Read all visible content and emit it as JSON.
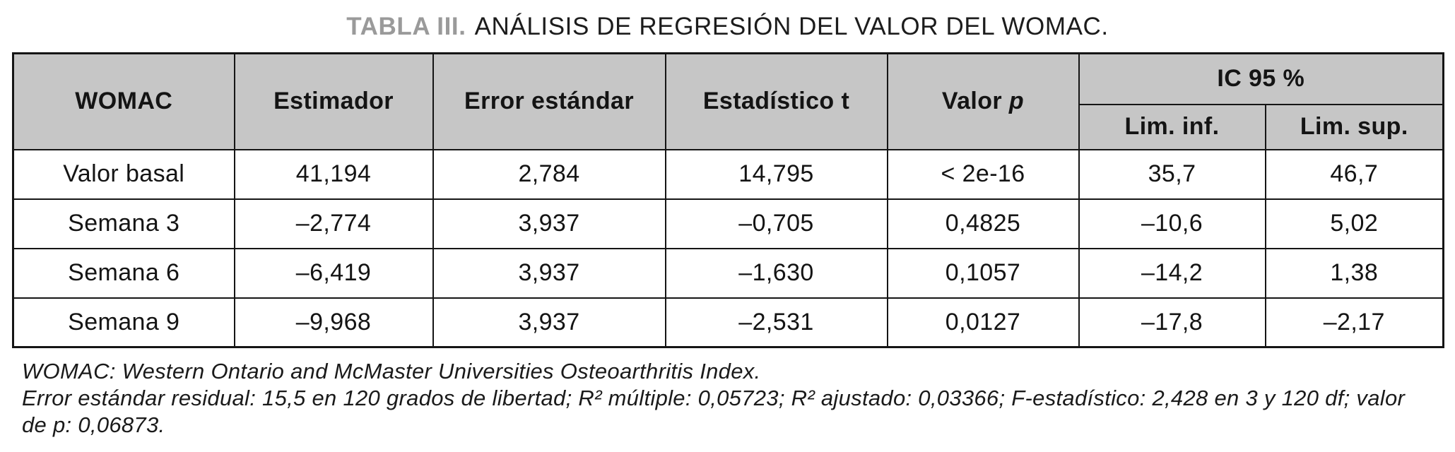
{
  "title": {
    "label": "TABLA III.",
    "text": "ANÁLISIS DE REGRESIÓN DEL VALOR DEL WOMAC."
  },
  "table": {
    "headers": {
      "womac": "WOMAC",
      "estimador": "Estimador",
      "error": "Error estándar",
      "t": "Estadístico t",
      "p_prefix": "Valor ",
      "p_italic": "p",
      "ic": "IC 95 %",
      "lim_inf": "Lim. inf.",
      "lim_sup": "Lim. sup."
    },
    "rows": [
      {
        "label": "Valor basal",
        "estimador": "41,194",
        "error": "2,784",
        "t": "14,795",
        "p": "< 2e-16",
        "lim_inf": "35,7",
        "lim_sup": "46,7"
      },
      {
        "label": "Semana 3",
        "estimador": "–2,774",
        "error": "3,937",
        "t": "–0,705",
        "p": "0,4825",
        "lim_inf": "–10,6",
        "lim_sup": "5,02"
      },
      {
        "label": "Semana 6",
        "estimador": "–6,419",
        "error": "3,937",
        "t": "–1,630",
        "p": "0,1057",
        "lim_inf": "–14,2",
        "lim_sup": "1,38"
      },
      {
        "label": "Semana 9",
        "estimador": "–9,968",
        "error": "3,937",
        "t": "–2,531",
        "p": "0,0127",
        "lim_inf": "–17,8",
        "lim_sup": "–2,17"
      }
    ]
  },
  "footnotes": {
    "line1": "WOMAC: Western Ontario and McMaster Universities Osteoarthritis Index.",
    "line2": "Error estándar residual: 15,5 en 120 grados de libertad; R² múltiple: 0,05723; R² ajustado: 0,03366; F-estadístico: 2,428 en 3 y 120 df; valor de p: 0,06873."
  },
  "colors": {
    "header_bg": "#c6c6c6",
    "border": "#151515",
    "title_label_gray": "#9a9a9a"
  }
}
